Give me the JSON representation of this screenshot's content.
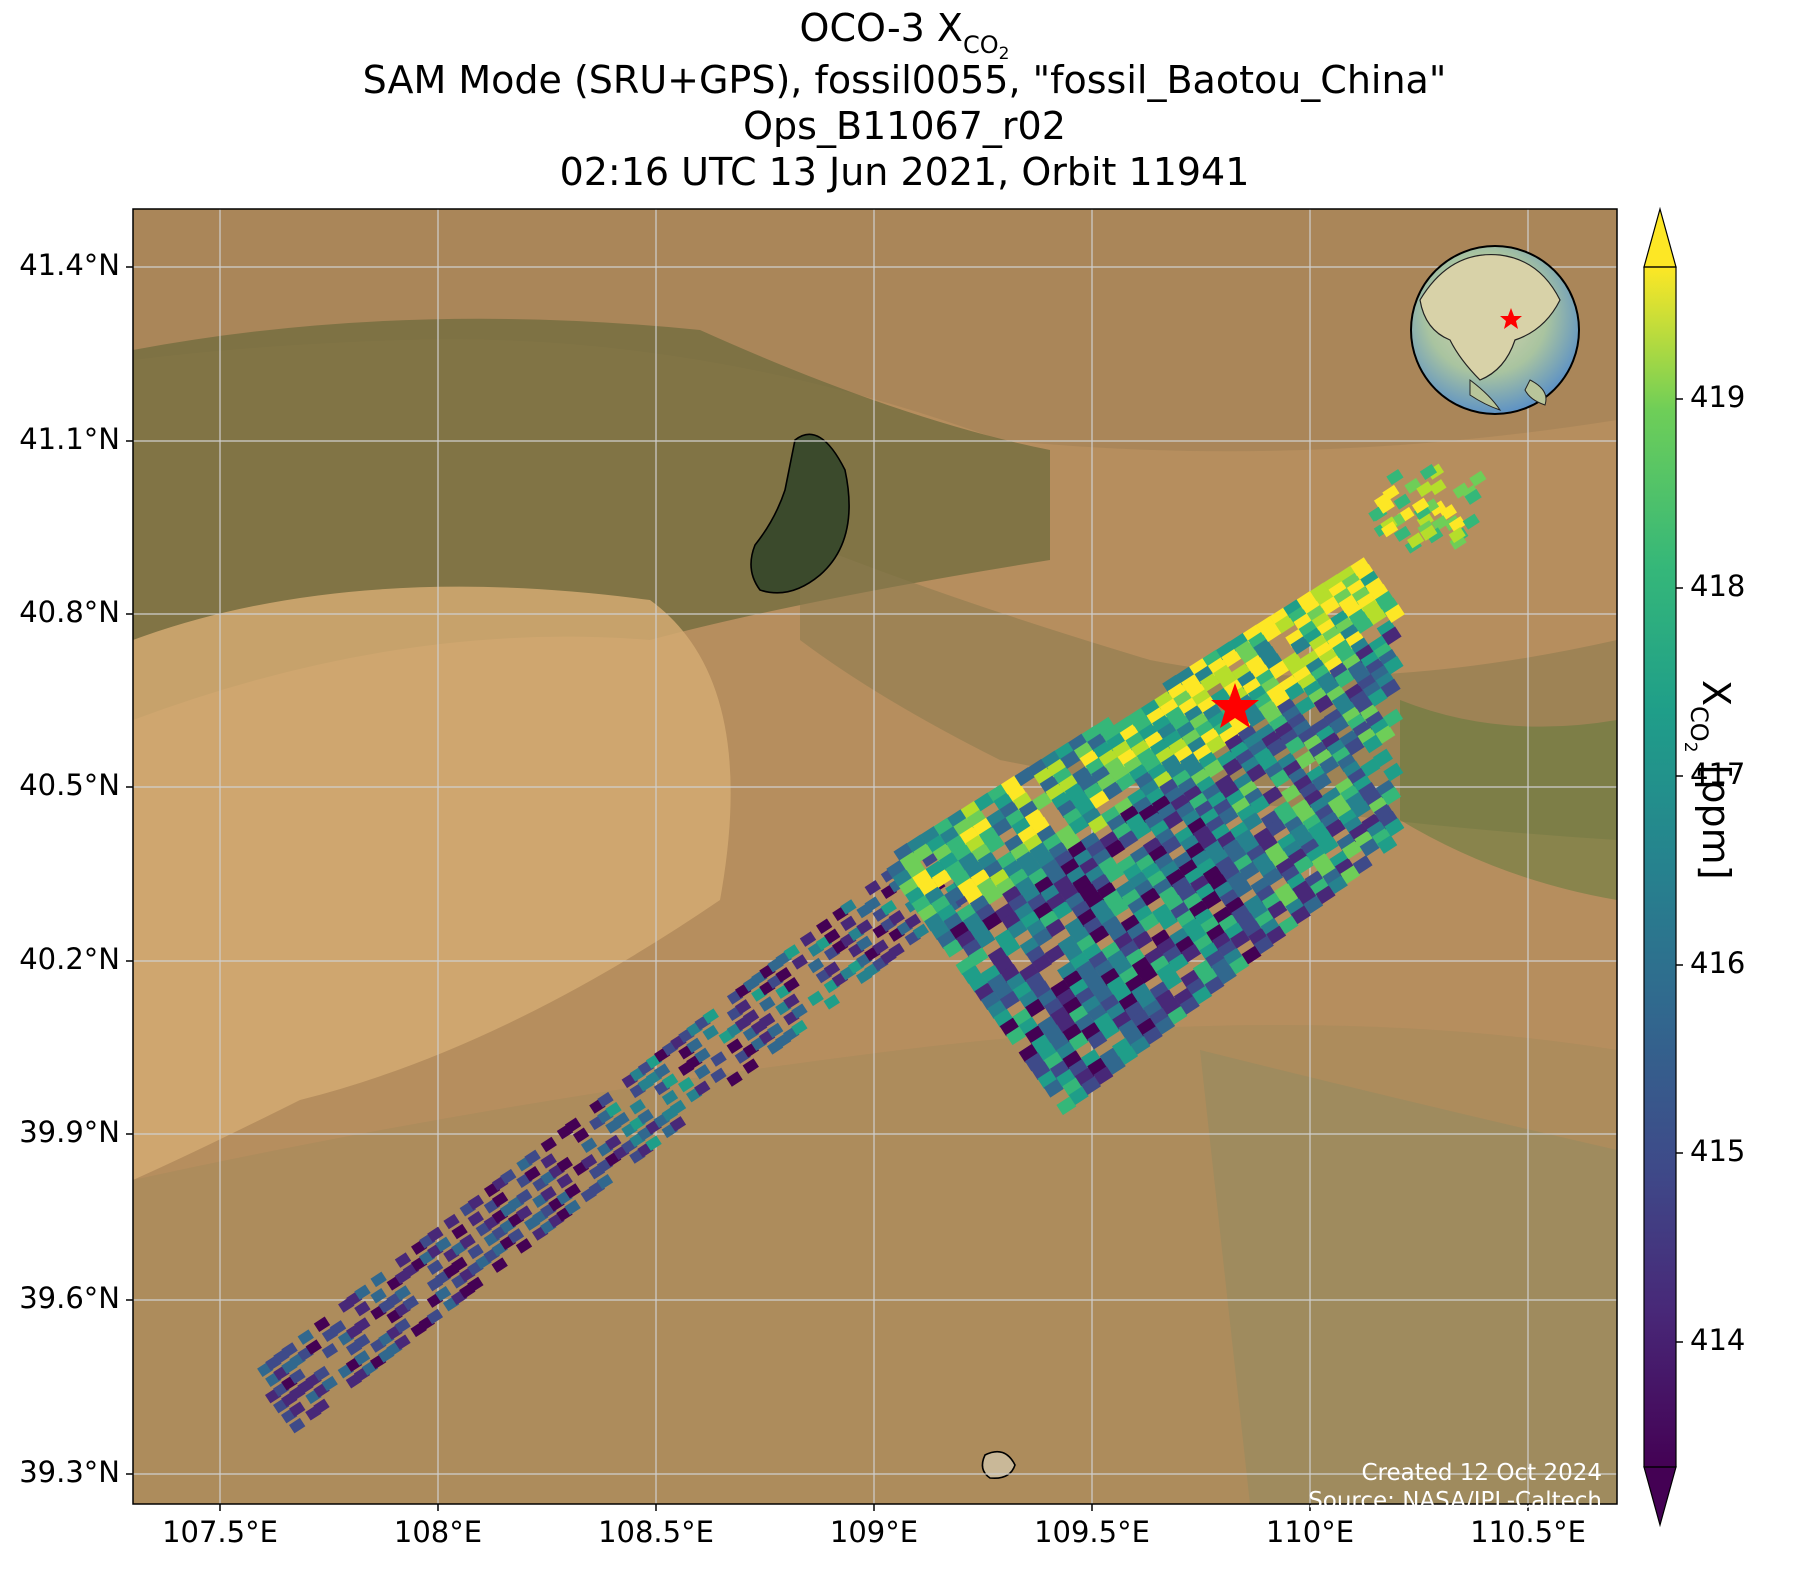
{
  "title": {
    "line1_prefix": "OCO-3 X",
    "line1_sub": "CO",
    "line1_subsub": "2",
    "line2": "SAM Mode (SRU+GPS), fossil0055, \"fossil_Baotou_China\"",
    "line3": "Ops_B11067_r02",
    "line4": "02:16 UTC 13 Jun 2021, Orbit 11941"
  },
  "map": {
    "lat_labels": [
      "41.4°N",
      "41.1°N",
      "40.8°N",
      "40.5°N",
      "40.2°N",
      "39.9°N",
      "39.6°N",
      "39.3°N"
    ],
    "lon_labels": [
      "107.5°E",
      "108°E",
      "108.5°E",
      "109°E",
      "109.5°E",
      "110°E",
      "110.5°E"
    ],
    "lon_range": [
      107.3,
      110.7
    ],
    "lat_range": [
      39.2,
      41.5
    ],
    "target": {
      "name": "fossil_Baotou_China",
      "lon": 109.82,
      "lat": 40.65,
      "marker": "red-star"
    },
    "lake_outline": "black"
  },
  "colorbar": {
    "colormap": "viridis",
    "range": [
      413.2,
      419.8
    ],
    "ticks": [
      "414",
      "415",
      "416",
      "417",
      "418",
      "419"
    ],
    "tick_values": [
      414,
      415,
      416,
      417,
      418,
      419
    ],
    "label_prefix": "X",
    "label_sub": "CO",
    "label_subsub": "2",
    "label_suffix": " [ppm]",
    "extend": "both"
  },
  "credits": {
    "created": "Created 12 Oct 2024",
    "source": "Source: NASA/JPL-Caltech"
  },
  "inset_globe": {
    "marker": "red-star",
    "region": "East Asia"
  },
  "colors": {
    "terrain": "#b48e5c",
    "grid": "#c8c8c8",
    "star": "#ff0000"
  }
}
